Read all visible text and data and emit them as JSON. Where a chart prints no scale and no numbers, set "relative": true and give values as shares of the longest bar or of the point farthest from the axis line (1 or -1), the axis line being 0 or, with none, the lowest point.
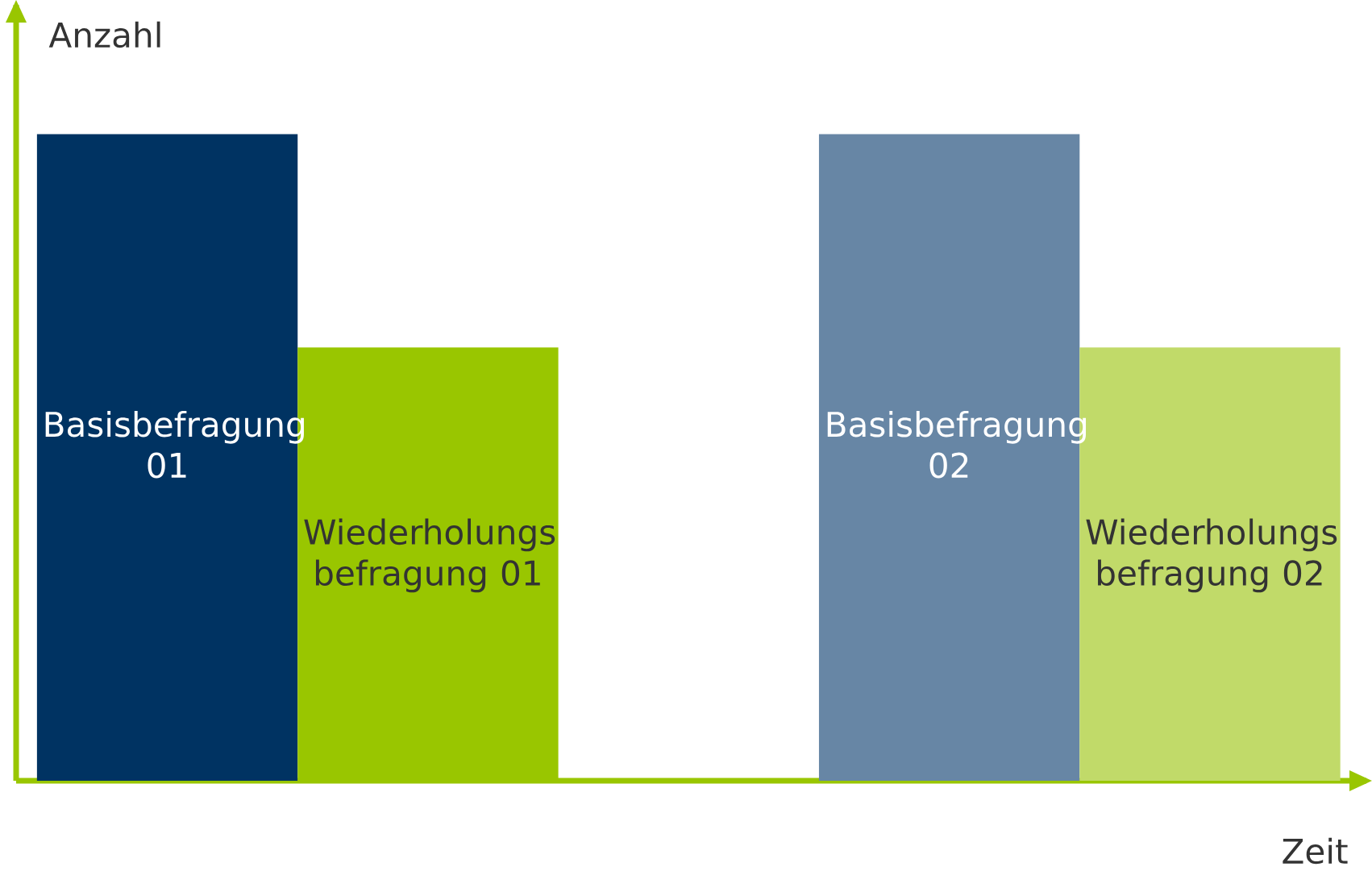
{
  "chart_data": {
    "type": "bar",
    "relative": true,
    "xlabel": "Zeit",
    "ylabel": "Anzahl",
    "categories": [
      "Basisbefragung 01",
      "Wiederholungs befragung 01",
      null,
      "Basisbefragung 02",
      "Wiederholungs befragung 02"
    ],
    "values": [
      1,
      0.67,
      null,
      1,
      0.67
    ],
    "colors": [
      "#003362",
      "#99c600",
      "#ffffff",
      "#6786a5",
      "#c1da69"
    ]
  }
}
